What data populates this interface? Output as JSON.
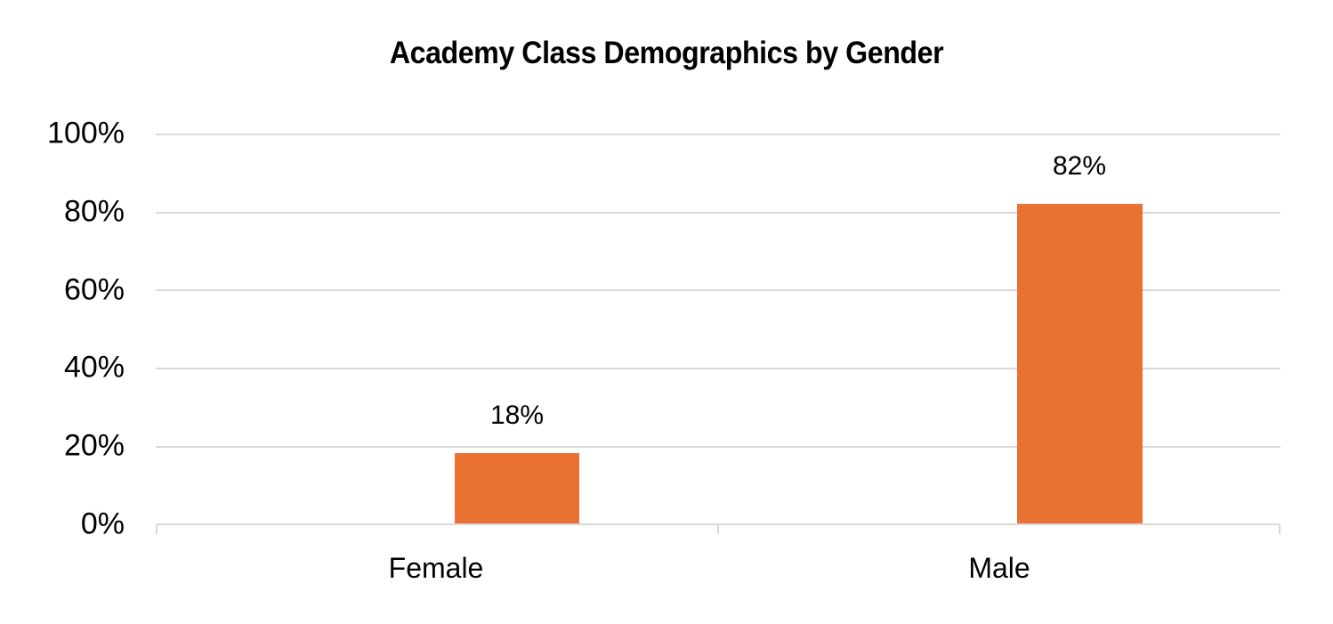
{
  "chart_data": {
    "type": "bar",
    "title": "Academy Class Demographics by Gender",
    "categories": [
      "Female",
      "Male"
    ],
    "values": [
      18,
      82
    ],
    "data_labels": [
      "18%",
      "82%"
    ],
    "xlabel": "",
    "ylabel": "",
    "ylim": [
      0,
      100
    ],
    "yticks": [
      "0%",
      "20%",
      "40%",
      "60%",
      "80%",
      "100%"
    ],
    "grid": true,
    "legend": null,
    "bar_color": "#E97132",
    "grid_color": "#D9D9D9"
  }
}
